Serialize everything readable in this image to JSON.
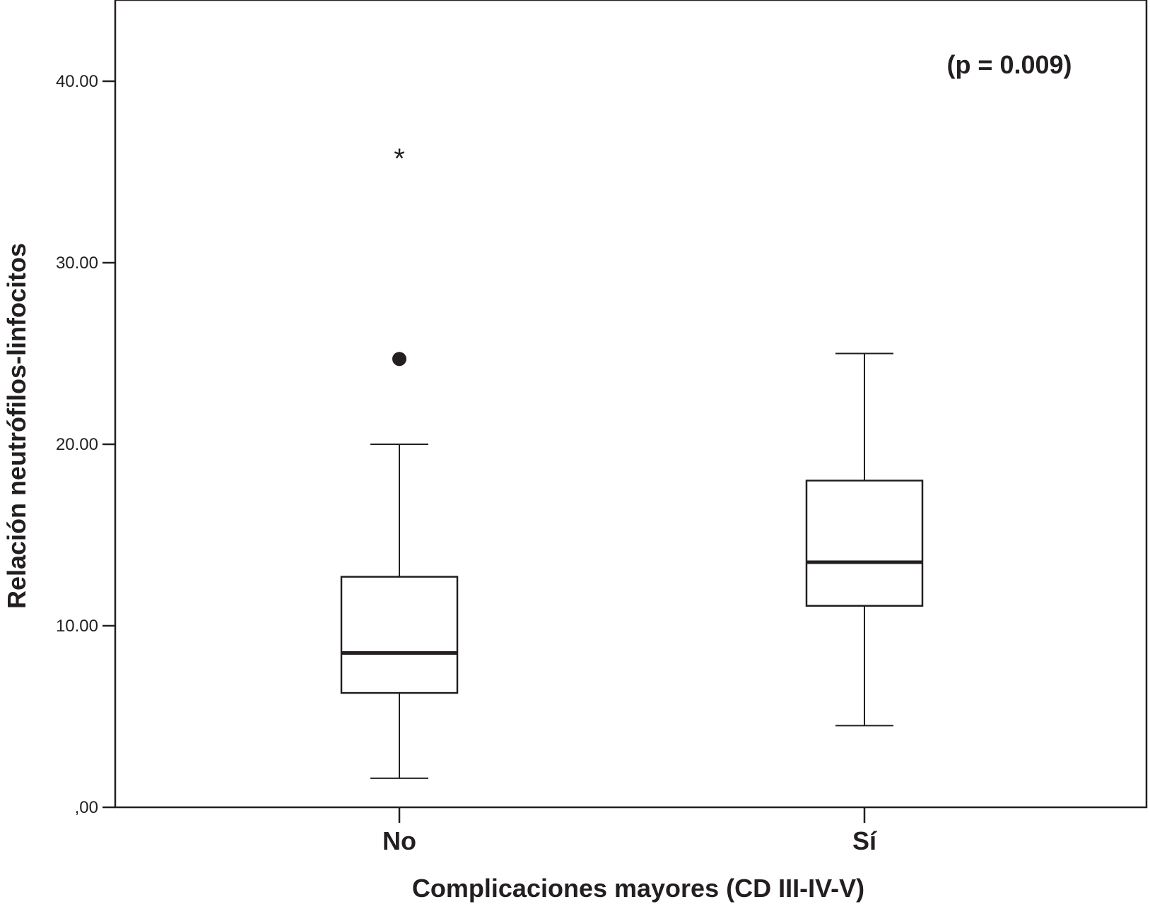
{
  "chart_data": {
    "type": "boxplot",
    "annotation": "(p = 0.009)",
    "xlabel": "Complicaciones mayores (CD III-IV-V)",
    "ylabel": "Relación neutrófilos-linfocitos",
    "ylim": [
      0,
      43
    ],
    "yticks": [
      {
        "value": 0,
        "label": ",00"
      },
      {
        "value": 10,
        "label": "10.00"
      },
      {
        "value": 20,
        "label": "20.00"
      },
      {
        "value": 30,
        "label": "30.00"
      },
      {
        "value": 40,
        "label": "40.00"
      }
    ],
    "categories": [
      "No",
      "Sí"
    ],
    "boxes": [
      {
        "category": "No",
        "whisker_low": 1.6,
        "q1": 6.3,
        "median": 8.5,
        "q3": 12.7,
        "whisker_high": 20.0,
        "outliers": [
          24.7
        ],
        "extremes": [
          36.0
        ]
      },
      {
        "category": "Sí",
        "whisker_low": 4.5,
        "q1": 11.1,
        "median": 13.5,
        "q3": 18.0,
        "whisker_high": 25.0,
        "outliers": [],
        "extremes": []
      }
    ],
    "grid": false,
    "colors": {
      "ink": "#231f20",
      "box_fill": "#ffffff"
    }
  }
}
